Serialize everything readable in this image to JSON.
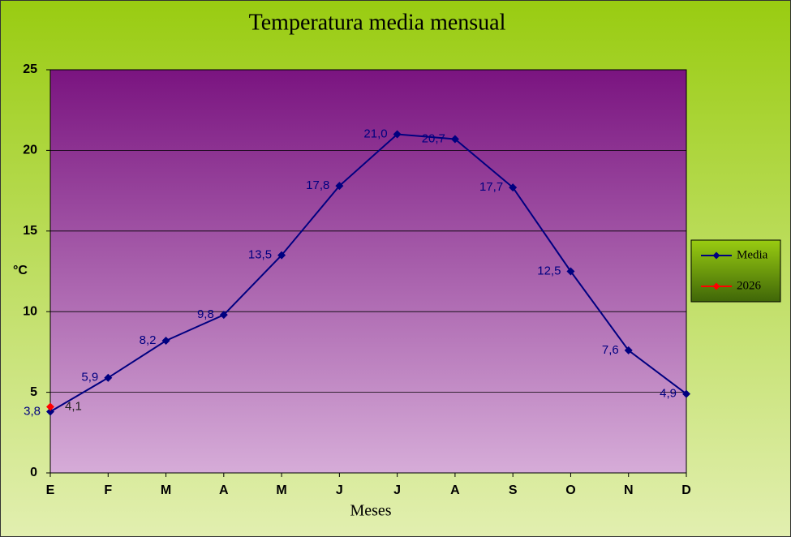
{
  "chart_data": {
    "type": "line",
    "title": "Temperatura media mensual",
    "y_label": "°C",
    "x_label": "Meses",
    "categories": [
      "E",
      "F",
      "M",
      "A",
      "M",
      "J",
      "J",
      "A",
      "S",
      "O",
      "N",
      "D"
    ],
    "series": [
      {
        "name": "Media",
        "color": "#000080",
        "values": [
          3.8,
          5.9,
          8.2,
          9.8,
          13.5,
          17.8,
          21.0,
          20.7,
          17.7,
          12.5,
          7.6,
          4.9
        ],
        "value_labels": [
          "3,8",
          "5,9",
          "8,2",
          "9,8",
          "13,5",
          "17,8",
          "21,0",
          "20,7",
          "17,7",
          "12,5",
          "7,6",
          "4,9"
        ]
      },
      {
        "name": "2026",
        "color": "#ff0000",
        "values": [
          4.1,
          null,
          null,
          null,
          null,
          null,
          null,
          null,
          null,
          null,
          null,
          null
        ],
        "value_labels": [
          "4,1",
          null,
          null,
          null,
          null,
          null,
          null,
          null,
          null,
          null,
          null,
          null
        ]
      }
    ],
    "ylim": [
      0,
      25
    ],
    "yticks": [
      0,
      5,
      10,
      15,
      20,
      25
    ],
    "grid": true,
    "legend": "right"
  }
}
